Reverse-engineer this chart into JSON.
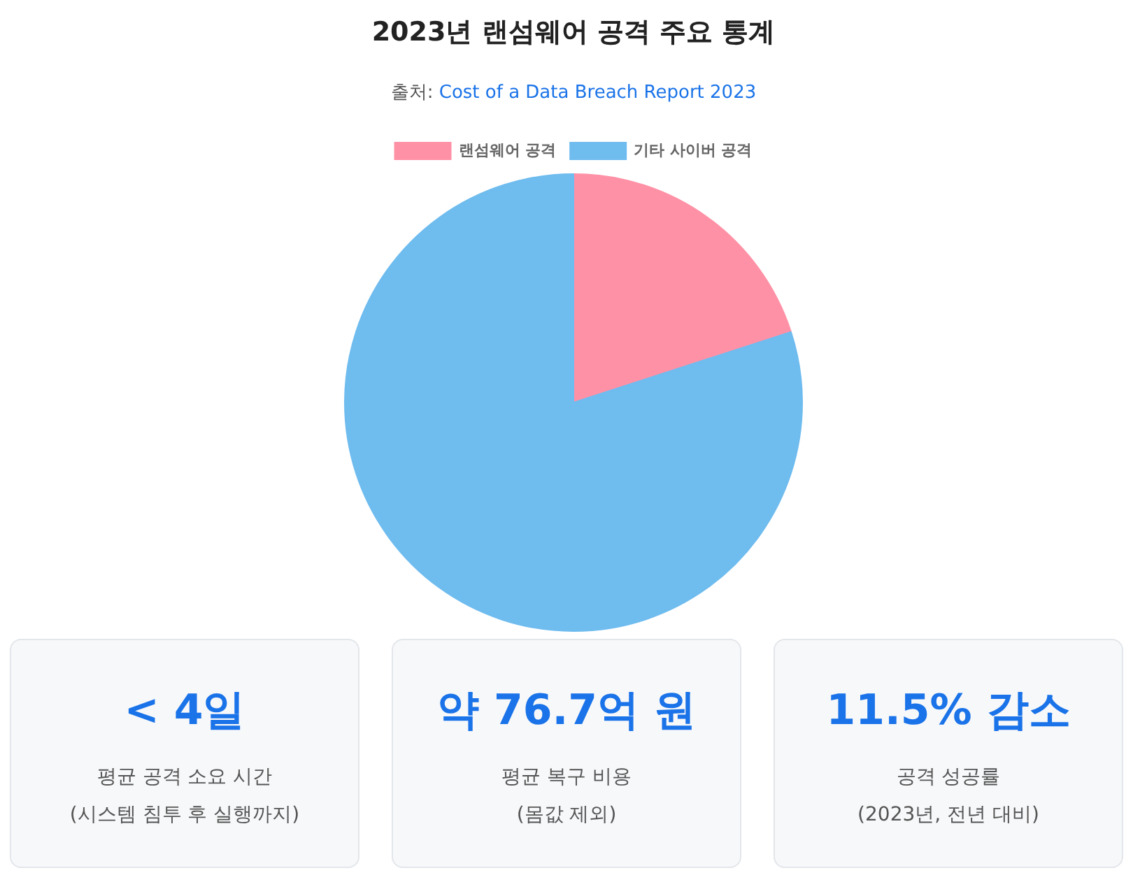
{
  "chart_data": [
    {
      "type": "pie",
      "title": "2023년 랜섬웨어 공격 주요 통계",
      "annotations": [
        "출처: Cost of a Data Breach Report 2023"
      ],
      "categories": [
        "랜섬웨어 공격",
        "기타 사이버 공격"
      ],
      "values": [
        20,
        80
      ],
      "colors": [
        "#ff91a6",
        "#6fbcef"
      ],
      "legend": "top"
    },
    {
      "type": "other",
      "title": "< 4일",
      "annotations": [
        "평균 공격 소요 시간",
        "(시스템 침투 후 실행까지)"
      ]
    },
    {
      "type": "other",
      "title": "약 76.7억 원",
      "annotations": [
        "평균 복구 비용",
        "(몸값 제외)"
      ]
    },
    {
      "type": "other",
      "title": "11.5% 감소",
      "annotations": [
        "공격 성공률",
        "(2023년, 전년 대비)"
      ]
    }
  ]
}
